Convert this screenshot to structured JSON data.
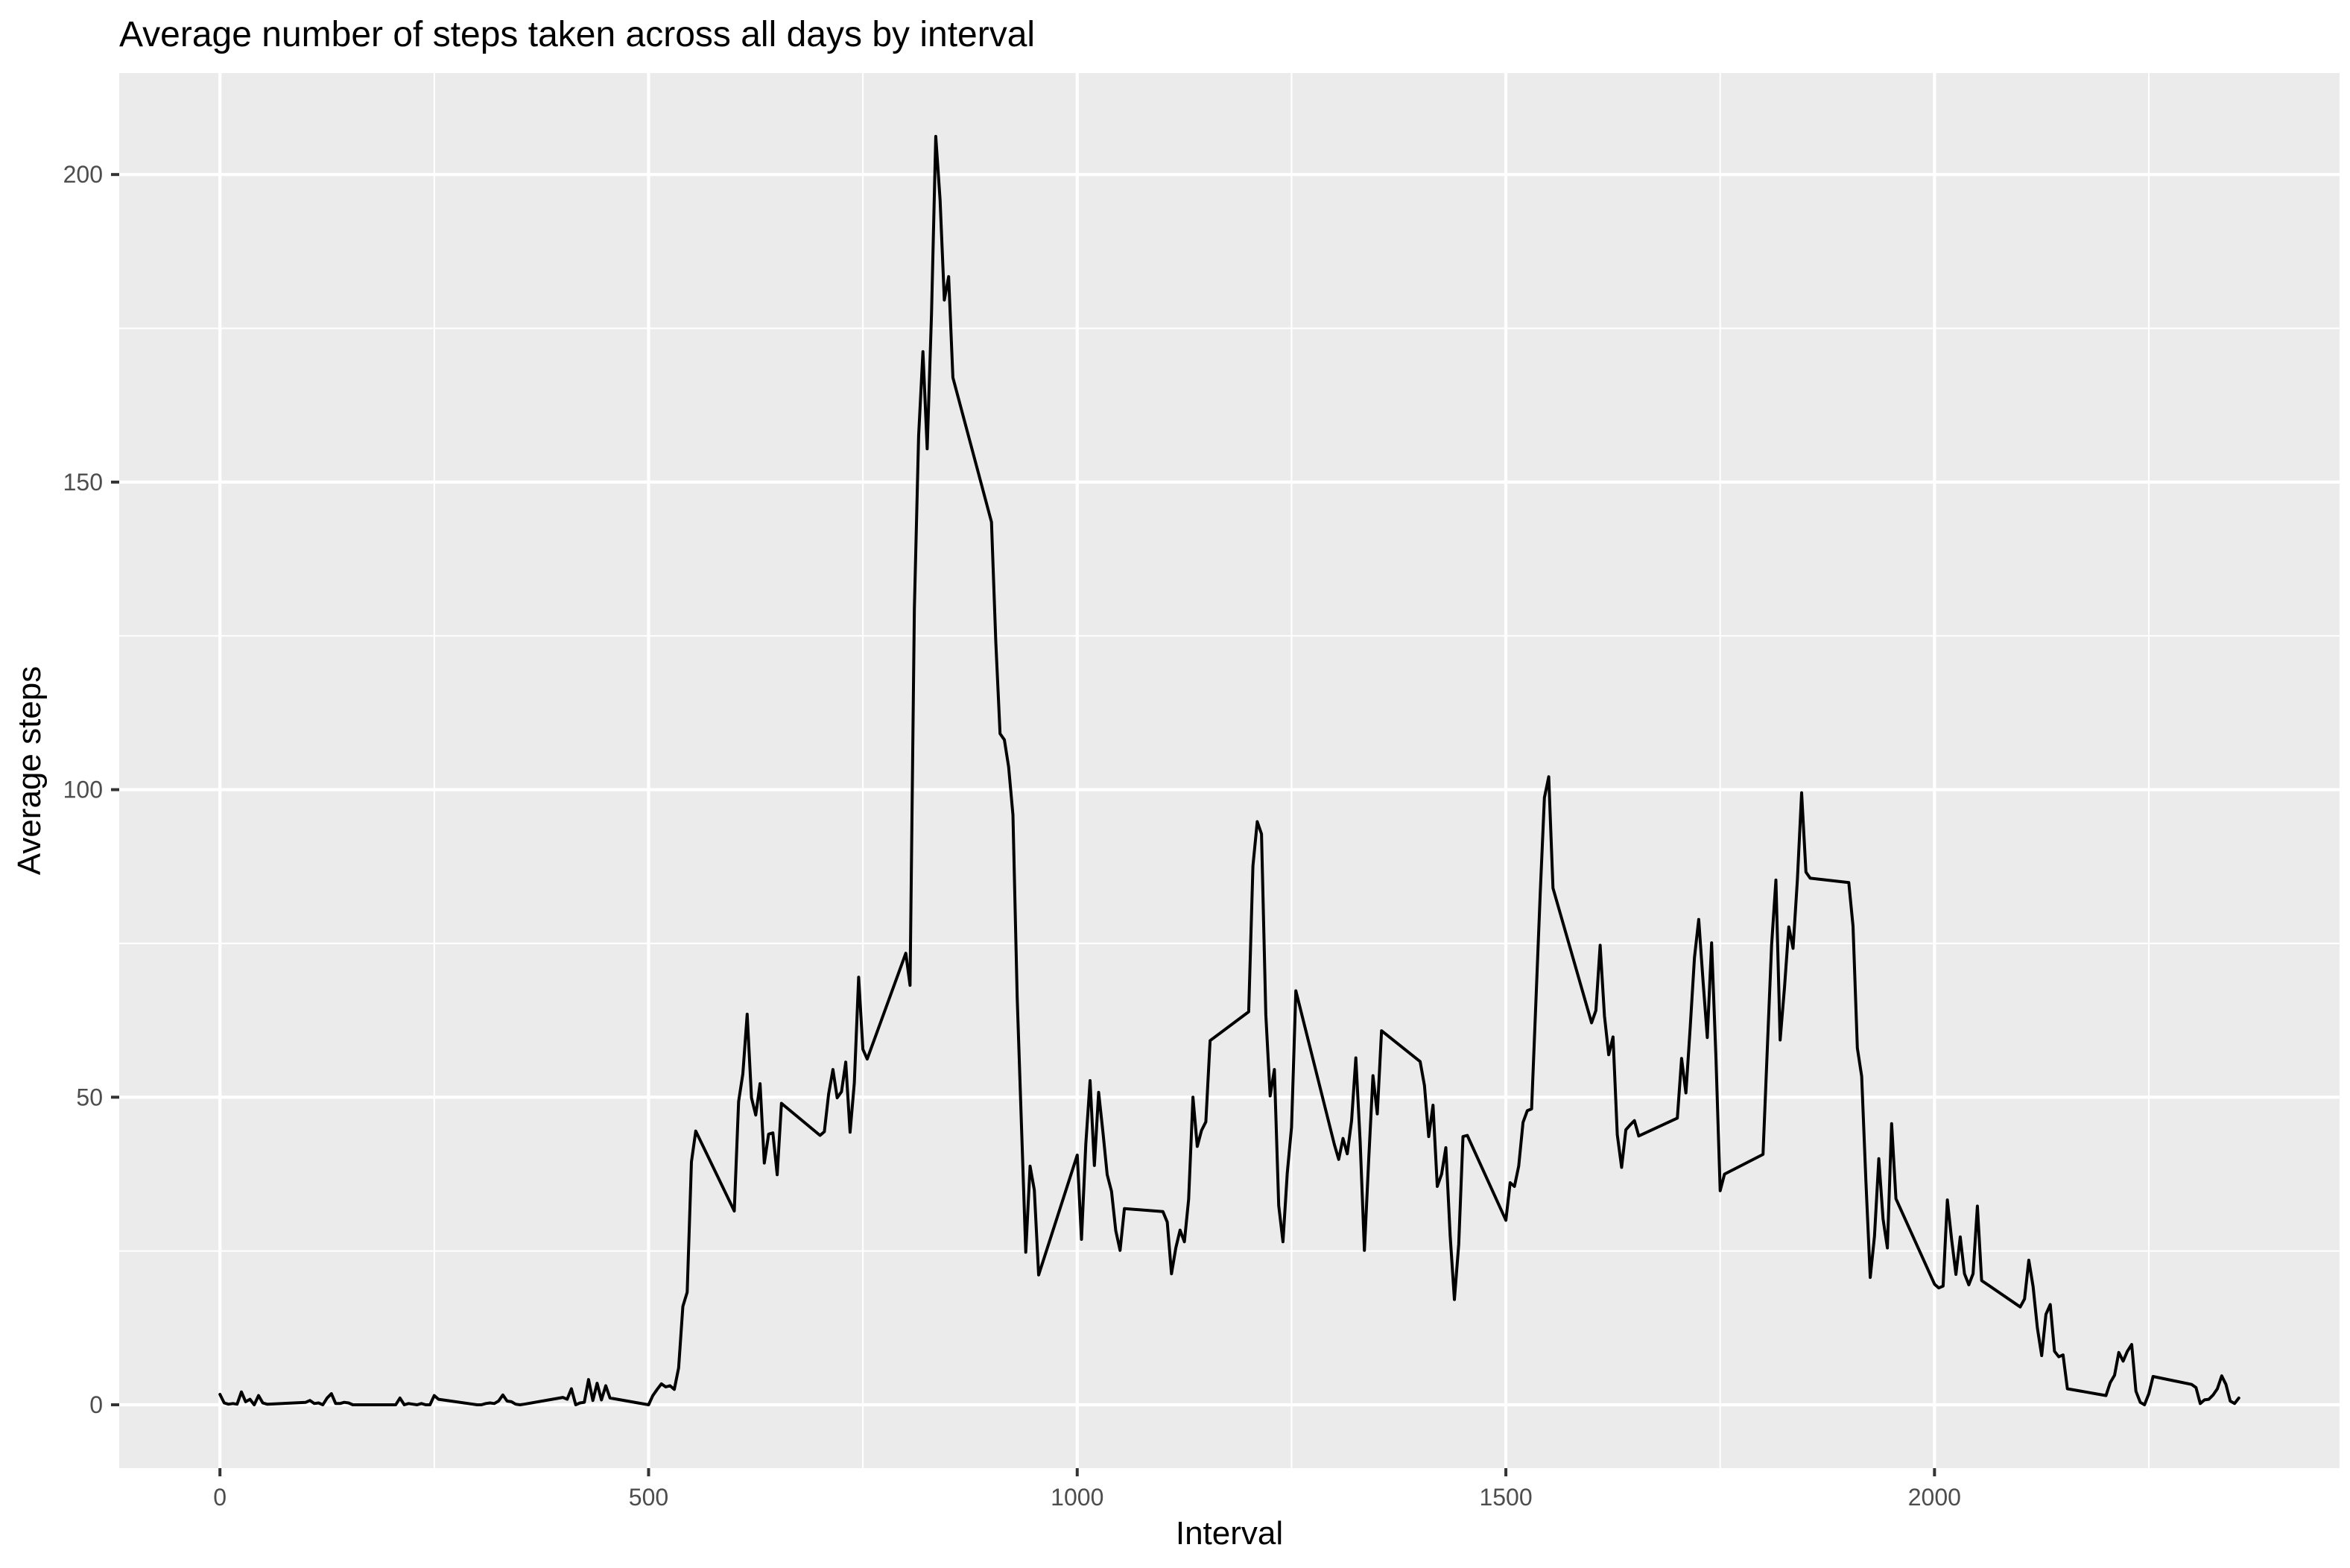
{
  "chart_data": {
    "type": "line",
    "title": "Average number of steps taken across all days by interval",
    "xlabel": "Interval",
    "ylabel": "Average steps",
    "xlim": [
      -117.5,
      2472.5
    ],
    "ylim": [
      -10.3,
      216.5
    ],
    "x_ticks": [
      0,
      500,
      1000,
      1500,
      2000
    ],
    "y_ticks": [
      0,
      50,
      100,
      150,
      200
    ],
    "x_tick_labels": [
      "0",
      "500",
      "1000",
      "1500",
      "2000"
    ],
    "y_tick_labels": [
      "0",
      "50",
      "100",
      "150",
      "200"
    ],
    "grid": true,
    "legend": "none",
    "series": [
      {
        "color": "#000000",
        "x": [
          0,
          5,
          10,
          15,
          20,
          25,
          30,
          35,
          40,
          45,
          50,
          55,
          100,
          105,
          110,
          115,
          120,
          125,
          130,
          135,
          140,
          145,
          150,
          155,
          200,
          205,
          210,
          215,
          220,
          225,
          230,
          235,
          240,
          245,
          250,
          255,
          300,
          305,
          310,
          315,
          320,
          325,
          330,
          335,
          340,
          345,
          350,
          355,
          400,
          405,
          410,
          415,
          420,
          425,
          430,
          435,
          440,
          445,
          450,
          455,
          500,
          505,
          510,
          515,
          520,
          525,
          530,
          535,
          540,
          545,
          550,
          555,
          600,
          605,
          610,
          615,
          620,
          625,
          630,
          635,
          640,
          645,
          650,
          655,
          700,
          705,
          710,
          715,
          720,
          725,
          730,
          735,
          740,
          745,
          750,
          755,
          800,
          805,
          810,
          815,
          820,
          825,
          830,
          835,
          840,
          845,
          850,
          855,
          900,
          905,
          910,
          915,
          920,
          925,
          930,
          935,
          940,
          945,
          950,
          955,
          1000,
          1005,
          1010,
          1015,
          1020,
          1025,
          1030,
          1035,
          1040,
          1045,
          1050,
          1055,
          1100,
          1105,
          1110,
          1115,
          1120,
          1125,
          1130,
          1135,
          1140,
          1145,
          1150,
          1155,
          1200,
          1205,
          1210,
          1215,
          1220,
          1225,
          1230,
          1235,
          1240,
          1245,
          1250,
          1255,
          1300,
          1305,
          1310,
          1315,
          1320,
          1325,
          1330,
          1335,
          1340,
          1345,
          1350,
          1355,
          1400,
          1405,
          1410,
          1415,
          1420,
          1425,
          1430,
          1435,
          1440,
          1445,
          1450,
          1455,
          1500,
          1505,
          1510,
          1515,
          1520,
          1525,
          1530,
          1535,
          1540,
          1545,
          1550,
          1555,
          1600,
          1605,
          1610,
          1615,
          1620,
          1625,
          1630,
          1635,
          1640,
          1645,
          1650,
          1655,
          1700,
          1705,
          1710,
          1715,
          1720,
          1725,
          1730,
          1735,
          1740,
          1745,
          1750,
          1755,
          1800,
          1805,
          1810,
          1815,
          1820,
          1825,
          1830,
          1835,
          1840,
          1845,
          1850,
          1855,
          1900,
          1905,
          1910,
          1915,
          1920,
          1925,
          1930,
          1935,
          1940,
          1945,
          1950,
          1955,
          2000,
          2005,
          2010,
          2015,
          2020,
          2025,
          2030,
          2035,
          2040,
          2045,
          2050,
          2055,
          2100,
          2105,
          2110,
          2115,
          2120,
          2125,
          2130,
          2135,
          2140,
          2145,
          2150,
          2155,
          2200,
          2205,
          2210,
          2215,
          2220,
          2225,
          2230,
          2235,
          2240,
          2245,
          2250,
          2255,
          2300,
          2305,
          2310,
          2315,
          2320,
          2325,
          2330,
          2335,
          2340,
          2345,
          2350,
          2355
        ],
        "y": [
          1.7,
          0.3,
          0.1,
          0.2,
          0.1,
          2.1,
          0.5,
          0.9,
          0.0,
          1.5,
          0.3,
          0.1,
          0.4,
          0.7,
          0.2,
          0.3,
          0.0,
          1.1,
          1.8,
          0.2,
          0.2,
          0.4,
          0.3,
          0.0,
          0.0,
          0.0,
          1.1,
          0.0,
          0.2,
          0.1,
          0.0,
          0.2,
          0.0,
          0.0,
          1.5,
          0.9,
          0.0,
          0.0,
          0.2,
          0.3,
          0.2,
          0.6,
          1.6,
          0.6,
          0.5,
          0.1,
          0.0,
          0.1,
          1.2,
          0.9,
          2.6,
          0.0,
          0.3,
          0.4,
          4.1,
          0.7,
          3.5,
          0.8,
          3.1,
          1.1,
          0.0,
          1.5,
          2.5,
          3.4,
          2.9,
          3.1,
          2.5,
          6.0,
          16.0,
          18.3,
          39.5,
          44.5,
          31.5,
          49.3,
          53.8,
          63.5,
          49.9,
          47.1,
          52.2,
          39.3,
          44.0,
          44.2,
          37.4,
          49.0,
          43.8,
          44.4,
          50.5,
          54.5,
          49.9,
          50.9,
          55.7,
          44.3,
          52.3,
          69.5,
          57.8,
          56.2,
          73.4,
          68.2,
          129.4,
          157.5,
          171.2,
          155.4,
          177.3,
          206.2,
          195.9,
          179.6,
          183.4,
          167.0,
          143.5,
          124.0,
          109.1,
          108.1,
          103.7,
          95.9,
          66.2,
          45.2,
          24.8,
          38.8,
          34.9,
          21.1,
          40.6,
          26.9,
          42.4,
          52.7,
          38.9,
          50.8,
          44.3,
          37.4,
          34.7,
          28.3,
          25.1,
          31.9,
          31.4,
          29.7,
          21.3,
          25.5,
          28.4,
          26.5,
          33.4,
          50.0,
          42.0,
          44.6,
          46.0,
          59.2,
          63.9,
          87.6,
          94.8,
          92.8,
          63.4,
          50.2,
          54.5,
          32.4,
          26.5,
          37.7,
          45.1,
          67.3,
          42.3,
          39.9,
          43.3,
          40.8,
          46.2,
          56.4,
          42.8,
          25.1,
          39.9,
          53.5,
          47.3,
          60.8,
          55.8,
          51.9,
          43.6,
          48.7,
          35.5,
          37.5,
          41.8,
          27.5,
          17.1,
          26.1,
          43.6,
          43.8,
          30.0,
          36.1,
          35.5,
          38.8,
          45.9,
          47.8,
          48.1,
          65.3,
          82.9,
          98.7,
          102.1,
          84.0,
          62.1,
          64.1,
          74.7,
          63.2,
          56.9,
          59.8,
          43.9,
          38.6,
          44.7,
          45.5,
          46.2,
          43.7,
          46.6,
          56.3,
          50.7,
          61.2,
          72.7,
          78.9,
          68.9,
          59.7,
          75.1,
          56.5,
          34.8,
          37.5,
          40.7,
          58.0,
          74.7,
          85.3,
          59.3,
          67.8,
          77.7,
          74.2,
          85.3,
          99.5,
          86.6,
          85.6,
          84.9,
          77.8,
          58.0,
          53.4,
          36.3,
          20.7,
          27.4,
          40.0,
          30.2,
          25.5,
          45.7,
          33.5,
          19.6,
          19.0,
          19.3,
          33.3,
          26.8,
          21.2,
          27.3,
          21.3,
          19.5,
          21.3,
          32.3,
          20.2,
          15.9,
          17.2,
          23.5,
          19.2,
          12.5,
          8.0,
          14.7,
          16.3,
          8.7,
          7.8,
          8.1,
          2.6,
          1.5,
          3.6,
          4.8,
          8.5,
          7.1,
          8.7,
          9.8,
          2.2,
          0.4,
          0.0,
          1.8,
          4.6,
          3.3,
          2.8,
          0.2,
          0.8,
          0.9,
          1.6,
          2.6,
          4.7,
          3.3,
          0.6,
          0.2,
          1.1
        ]
      }
    ]
  }
}
